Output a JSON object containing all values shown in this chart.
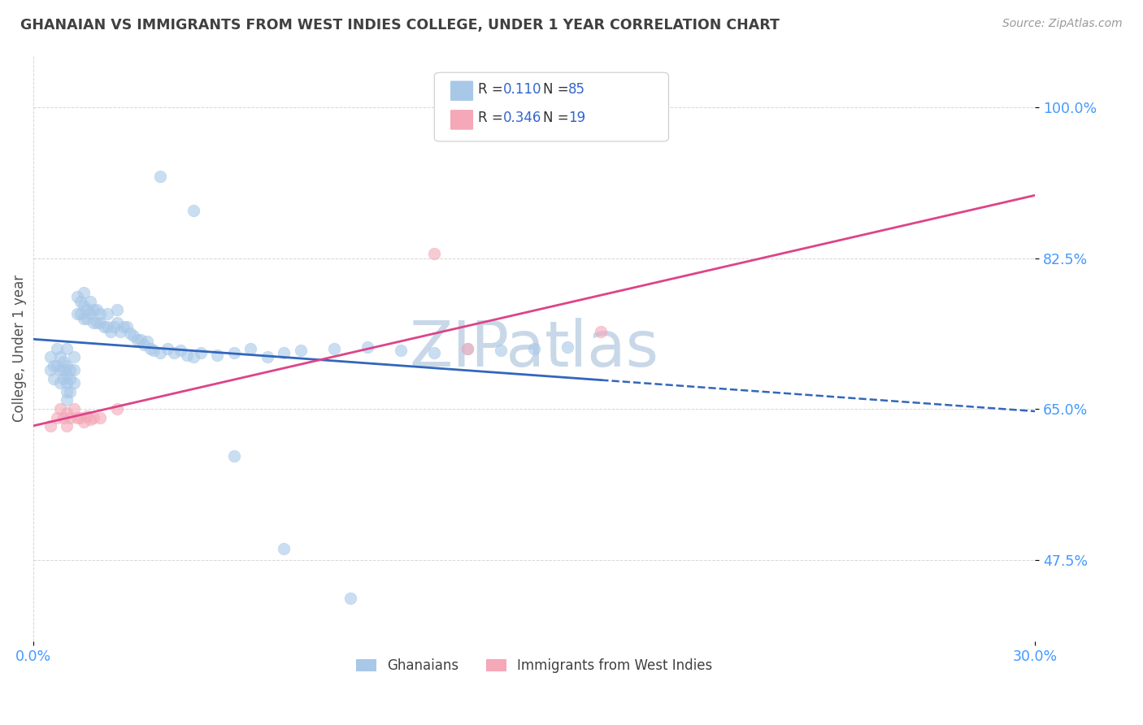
{
  "title": "GHANAIAN VS IMMIGRANTS FROM WEST INDIES COLLEGE, UNDER 1 YEAR CORRELATION CHART",
  "source": "Source: ZipAtlas.com",
  "ylabel": "College, Under 1 year",
  "ytick_labels": [
    "47.5%",
    "65.0%",
    "82.5%",
    "100.0%"
  ],
  "ytick_values": [
    0.475,
    0.65,
    0.825,
    1.0
  ],
  "xlim": [
    0.0,
    0.3
  ],
  "ylim": [
    0.38,
    1.06
  ],
  "r_ghanaian": 0.11,
  "n_ghanaian": 85,
  "r_westindies": 0.346,
  "n_westindies": 19,
  "color_ghanaian": "#a8c8e8",
  "color_westindies": "#f4a8b8",
  "trendline_color_ghanaian": "#3366bb",
  "trendline_color_westindies": "#dd4488",
  "background_color": "#ffffff",
  "grid_color": "#cccccc",
  "title_color": "#404040",
  "source_color": "#999999",
  "watermark": "ZIPatlas",
  "watermark_color": "#c8d8e8",
  "legend_color": "#3366cc",
  "ghanaian_x": [
    0.005,
    0.005,
    0.006,
    0.006,
    0.007,
    0.007,
    0.008,
    0.008,
    0.008,
    0.009,
    0.009,
    0.009,
    0.01,
    0.01,
    0.01,
    0.01,
    0.01,
    0.01,
    0.011,
    0.011,
    0.011,
    0.012,
    0.012,
    0.012,
    0.013,
    0.013,
    0.014,
    0.014,
    0.015,
    0.015,
    0.015,
    0.016,
    0.016,
    0.017,
    0.017,
    0.018,
    0.018,
    0.019,
    0.019,
    0.02,
    0.02,
    0.021,
    0.022,
    0.022,
    0.023,
    0.024,
    0.025,
    0.025,
    0.026,
    0.027,
    0.028,
    0.029,
    0.03,
    0.031,
    0.032,
    0.033,
    0.034,
    0.035,
    0.036,
    0.038,
    0.04,
    0.042,
    0.044,
    0.046,
    0.048,
    0.05,
    0.055,
    0.06,
    0.065,
    0.07,
    0.075,
    0.08,
    0.09,
    0.1,
    0.11,
    0.12,
    0.13,
    0.14,
    0.15,
    0.16,
    0.038,
    0.048,
    0.06,
    0.075,
    0.095
  ],
  "ghanaian_y": [
    0.695,
    0.71,
    0.685,
    0.7,
    0.7,
    0.72,
    0.68,
    0.695,
    0.71,
    0.685,
    0.695,
    0.705,
    0.66,
    0.67,
    0.68,
    0.69,
    0.7,
    0.72,
    0.67,
    0.685,
    0.695,
    0.68,
    0.695,
    0.71,
    0.76,
    0.78,
    0.76,
    0.775,
    0.755,
    0.77,
    0.785,
    0.755,
    0.765,
    0.76,
    0.775,
    0.75,
    0.765,
    0.75,
    0.765,
    0.75,
    0.76,
    0.745,
    0.745,
    0.76,
    0.74,
    0.745,
    0.75,
    0.765,
    0.74,
    0.745,
    0.745,
    0.738,
    0.735,
    0.73,
    0.73,
    0.725,
    0.728,
    0.72,
    0.718,
    0.715,
    0.72,
    0.715,
    0.718,
    0.712,
    0.71,
    0.715,
    0.712,
    0.715,
    0.72,
    0.71,
    0.715,
    0.718,
    0.72,
    0.722,
    0.718,
    0.715,
    0.72,
    0.718,
    0.72,
    0.722,
    0.92,
    0.88,
    0.595,
    0.488,
    0.43
  ],
  "westindies_x": [
    0.005,
    0.007,
    0.008,
    0.009,
    0.01,
    0.01,
    0.011,
    0.012,
    0.013,
    0.014,
    0.015,
    0.016,
    0.017,
    0.018,
    0.02,
    0.025,
    0.13,
    0.17,
    0.12
  ],
  "westindies_y": [
    0.63,
    0.64,
    0.65,
    0.64,
    0.63,
    0.645,
    0.64,
    0.65,
    0.64,
    0.64,
    0.635,
    0.642,
    0.638,
    0.64,
    0.64,
    0.65,
    0.72,
    0.74,
    0.83
  ]
}
